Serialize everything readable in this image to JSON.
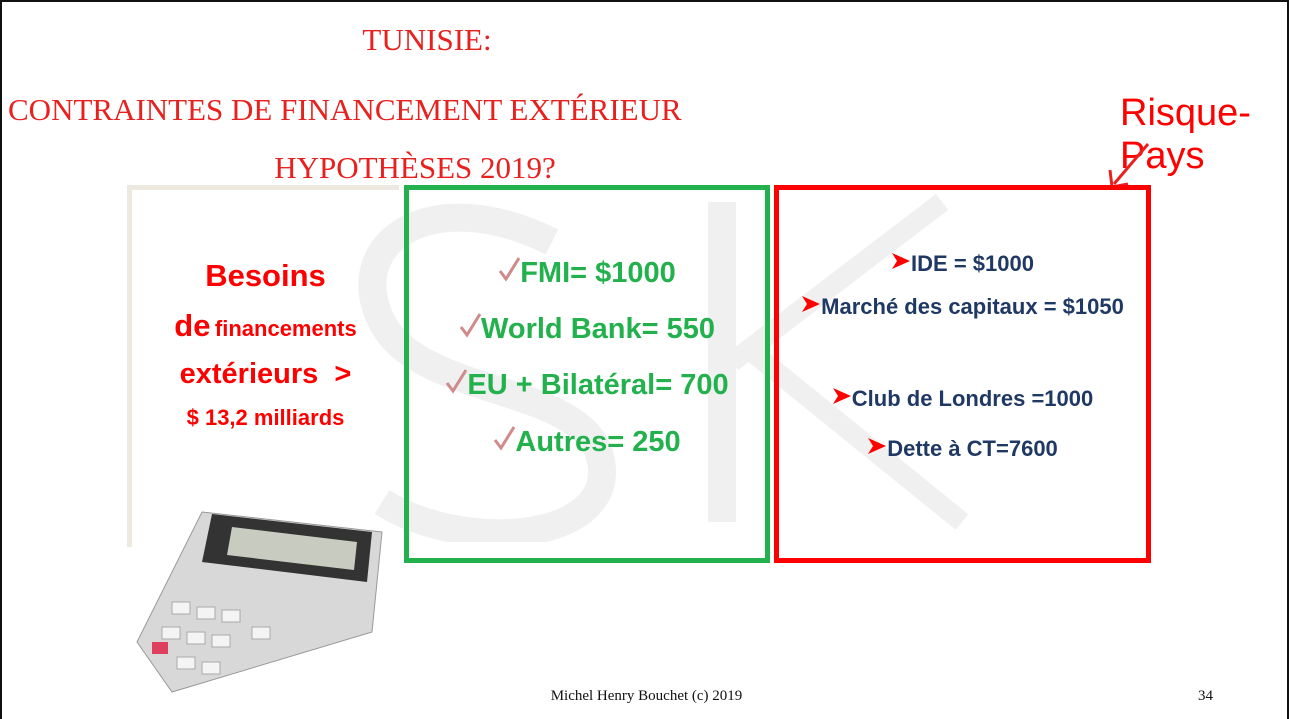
{
  "title": {
    "lines": [
      "TUNISIE:",
      "CONTRAINTES DE FINANCEMENT EXTÉRIEUR",
      "HYPOTHÈSES 2019?"
    ]
  },
  "label": "Risque-Pays",
  "needs": {
    "line1": "Besoins",
    "line2a": "de",
    "line2b": "financements",
    "line3a": "extérieurs",
    "line3b": ">",
    "line4": "$ 13,2 milliards"
  },
  "official": [
    "FMI= $1000",
    "World Bank= 550",
    "EU + Bilatéral= 700",
    "Autres= 250"
  ],
  "private": [
    "IDE = $1000",
    "Marché des capitaux = $1050",
    "Club de Londres =1000",
    "Dette à CT=7600"
  ],
  "footer": {
    "author": "Michel Henry Bouchet (c)  2019",
    "page": "34"
  }
}
